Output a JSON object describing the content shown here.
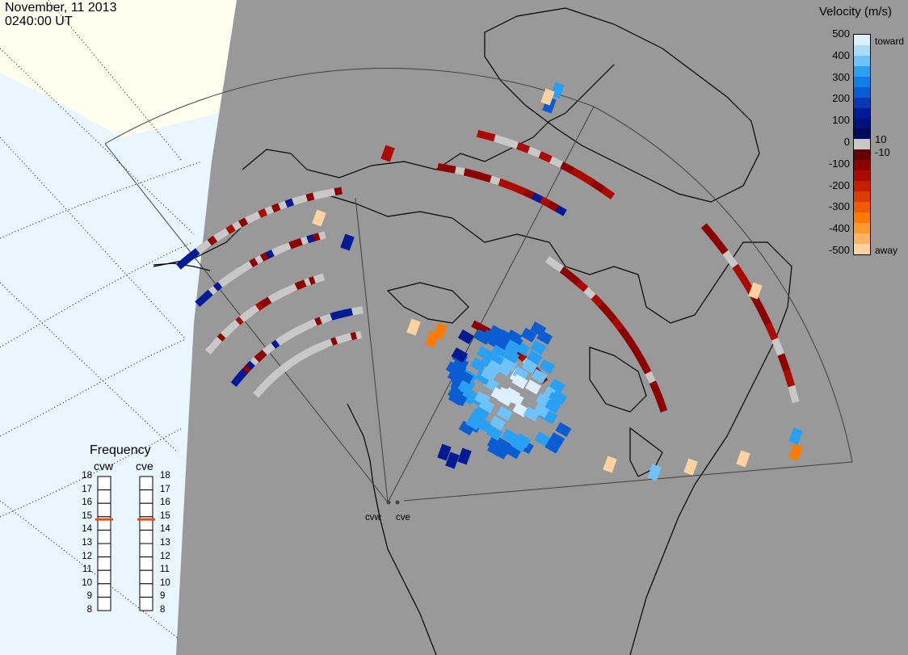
{
  "header": {
    "date": "November, 11 2013",
    "time": "0240:00 UT"
  },
  "colorbar": {
    "title": "Velocity (m/s)",
    "ticks": [
      "500",
      "400",
      "300",
      "200",
      "100",
      "0",
      "-100",
      "-200",
      "-300",
      "-400",
      "-500"
    ],
    "pos_small": "10",
    "neg_small": "-10",
    "toward_label": "toward",
    "away_label": "away",
    "colors": [
      "#dcf0ff",
      "#aadcff",
      "#6ec3ff",
      "#2aa0f5",
      "#0f7ee6",
      "#0a5cd2",
      "#0838b4",
      "#001a96",
      "#00127a",
      "#000a5a",
      "#c8c8c8",
      "#640000",
      "#8c0000",
      "#aa0a00",
      "#c81e00",
      "#dc3c00",
      "#f05a00",
      "#ff7a00",
      "#ff9a2e",
      "#ffb466",
      "#ffd2a0"
    ]
  },
  "frequency": {
    "title": "Frequency",
    "radars": [
      "cvw",
      "cve"
    ],
    "levels": [
      "18",
      "17",
      "16",
      "15",
      "14",
      "13",
      "12",
      "11",
      "10",
      "9",
      "8"
    ],
    "values_mhz": [
      14.8,
      14.8
    ],
    "marker_color": "#e0501e"
  },
  "sites": {
    "west": "cvw",
    "east": "cve"
  },
  "map_colors": {
    "background": "#999999",
    "daylight": "#fffff0",
    "sea": "#eaf6ff",
    "ground_scatter": "#c8c8c8"
  }
}
